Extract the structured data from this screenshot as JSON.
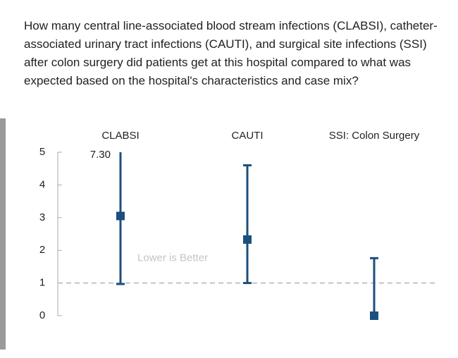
{
  "chart_data": {
    "type": "errorbar",
    "title": "How many central line-associated blood stream infections (CLABSI), catheter-associated urinary tract infections (CAUTI), and surgical site infections (SSI) after colon surgery did patients get at this hospital compared to what was expected based on the hospital's characteristics and case mix?",
    "categories": [
      "CLABSI",
      "CAUTI",
      "SSI: Colon Surgery"
    ],
    "values": [
      3.05,
      2.33,
      0
    ],
    "lower": [
      0.97,
      1.0,
      0
    ],
    "upper": [
      7.3,
      4.6,
      1.76
    ],
    "upper_labels": [
      "7.30",
      null,
      null
    ],
    "color": "#1c4f7c",
    "ylim": [
      0,
      5
    ],
    "yticks": [
      0,
      1,
      2,
      3,
      4,
      5
    ],
    "reference_line": {
      "value": 1,
      "label": "Lower is Better",
      "color": "#c4c4c4"
    }
  }
}
